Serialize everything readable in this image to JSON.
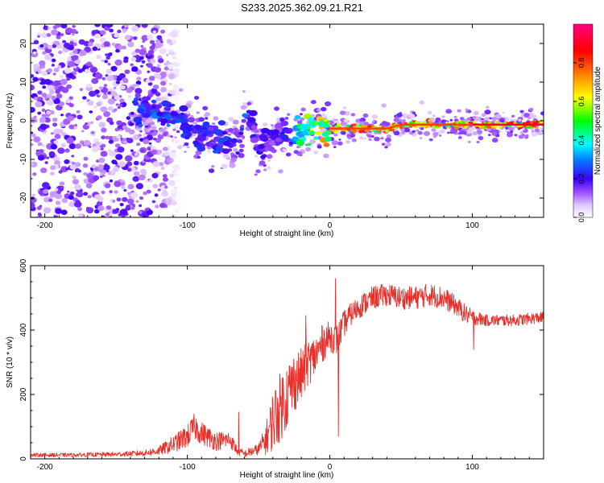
{
  "title": "S233.2025.362.09.21.R21",
  "colors": {
    "snr_line": "#e8302b",
    "axis": "#000000",
    "colormap": [
      "#ffffff",
      "#cc99ff",
      "#6b00e0",
      "#0040ff",
      "#00ffff",
      "#00ff00",
      "#ffff00",
      "#ff8000",
      "#ff0000",
      "#ff007f"
    ]
  },
  "chart_data": [
    {
      "type": "heatmap",
      "name": "spectrogram",
      "xlabel": "Height of straight line (km)",
      "ylabel": "Frequency (Hz)",
      "xlim": [
        -210,
        150
      ],
      "ylim": [
        -25,
        25
      ],
      "xticks": [
        -200,
        -100,
        0,
        100
      ],
      "xtick_labels": [
        "-200",
        "-100",
        "0",
        "100"
      ],
      "yticks": [
        -20,
        -10,
        0,
        10,
        20
      ],
      "ytick_labels": [
        "-20",
        "-10",
        "0",
        "10",
        "20"
      ],
      "colorbar": {
        "label": "Normalized spectral amplitude",
        "range": [
          0,
          1
        ],
        "ticks": [
          0.0,
          0.2,
          0.4,
          0.6,
          0.8
        ],
        "tick_labels": [
          "0.0",
          "0.2",
          "0.4",
          "0.6",
          "0.8"
        ]
      },
      "ridge": {
        "x": [
          -137,
          -130,
          -120,
          -110,
          -100,
          -90,
          -80,
          -70,
          -63,
          -60,
          -58,
          -55,
          -52,
          -48,
          -40,
          -35,
          -30,
          -25,
          -20,
          -10,
          0,
          10,
          20,
          30,
          40,
          50,
          60,
          70,
          80,
          90,
          100,
          110,
          120,
          130,
          140,
          150
        ],
        "freq": [
          3,
          2,
          1,
          1,
          -1,
          -3,
          -4,
          -5,
          -6,
          3,
          2,
          0,
          -5,
          -6,
          -5,
          -3,
          -2,
          -4,
          -2,
          -2,
          -2,
          -2,
          -2,
          -2,
          -2,
          -1,
          -1,
          -1,
          -1,
          -1,
          -1,
          -1,
          -1,
          -1,
          -1,
          -1
        ],
        "amp": [
          0.3,
          0.3,
          0.3,
          0.3,
          0.25,
          0.25,
          0.25,
          0.25,
          0.2,
          0.3,
          0.3,
          0.25,
          0.2,
          0.2,
          0.2,
          0.2,
          0.25,
          0.3,
          0.5,
          0.7,
          0.8,
          0.8,
          0.8,
          0.8,
          0.8,
          0.8,
          0.8,
          0.8,
          0.8,
          0.8,
          0.9,
          0.9,
          0.9,
          0.9,
          0.9,
          0.9
        ]
      },
      "noise_region_x": [
        -210,
        -120
      ]
    },
    {
      "type": "line",
      "name": "snr",
      "xlabel": "Height of straight line (km)",
      "ylabel": "SNR (10 * v/v)",
      "xlim": [
        -210,
        150
      ],
      "ylim": [
        0,
        600
      ],
      "xticks": [
        -200,
        -100,
        0,
        100
      ],
      "xtick_labels": [
        "-200",
        "-100",
        "0",
        "100"
      ],
      "yticks": [
        0,
        200,
        400,
        600
      ],
      "ytick_labels": [
        "0",
        "200",
        "400",
        "600"
      ],
      "envelope": {
        "x": [
          -210,
          -180,
          -150,
          -130,
          -120,
          -110,
          -100,
          -95,
          -90,
          -80,
          -70,
          -65,
          -60,
          -50,
          -45,
          -40,
          -35,
          -30,
          -25,
          -20,
          -15,
          -10,
          -5,
          0,
          5,
          10,
          15,
          20,
          30,
          40,
          50,
          60,
          70,
          80,
          90,
          95,
          100,
          110,
          120,
          130,
          140,
          150
        ],
        "mean": [
          12,
          12,
          14,
          18,
          25,
          45,
          70,
          100,
          80,
          55,
          60,
          25,
          15,
          30,
          60,
          120,
          160,
          200,
          240,
          260,
          300,
          320,
          360,
          380,
          370,
          420,
          450,
          470,
          500,
          510,
          500,
          500,
          510,
          500,
          470,
          450,
          440,
          430,
          430,
          430,
          435,
          440
        ],
        "spread": [
          5,
          5,
          6,
          8,
          12,
          22,
          30,
          35,
          30,
          25,
          22,
          12,
          10,
          15,
          40,
          80,
          90,
          90,
          80,
          70,
          60,
          55,
          50,
          40,
          40,
          35,
          30,
          30,
          30,
          30,
          30,
          30,
          30,
          30,
          25,
          25,
          20,
          15,
          15,
          15,
          15,
          15
        ]
      },
      "spikes": [
        {
          "x": 4,
          "y": 560
        },
        {
          "x": 6,
          "y": 70
        },
        {
          "x": 101,
          "y": 340
        },
        {
          "x": -17,
          "y": 445
        },
        {
          "x": -64,
          "y": 145
        }
      ]
    }
  ]
}
